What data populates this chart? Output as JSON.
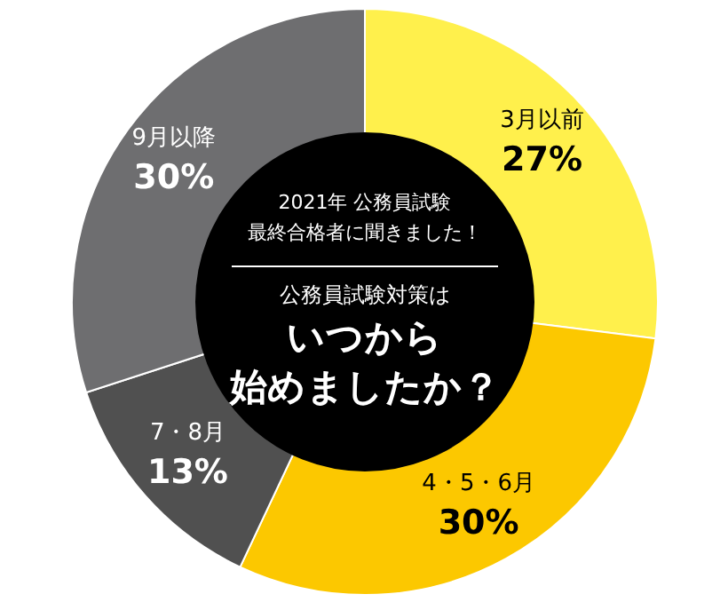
{
  "chart_data": {
    "type": "donut",
    "subtitle": "2021年 公務員試験",
    "annotations": [
      "最終合格者に聞きました！",
      "公務員試験対策は",
      "始めましたか？"
    ],
    "title": "いつから",
    "categories": [
      "3月以前",
      "4・5・6月",
      "7・8月",
      "9月以降"
    ],
    "values": [
      27,
      30,
      13,
      30
    ],
    "value_labels": [
      "27%",
      "30%",
      "13%",
      "30%"
    ],
    "colors": [
      "#fff04c",
      "#fcc800",
      "#505050",
      "#6e6e70"
    ]
  }
}
